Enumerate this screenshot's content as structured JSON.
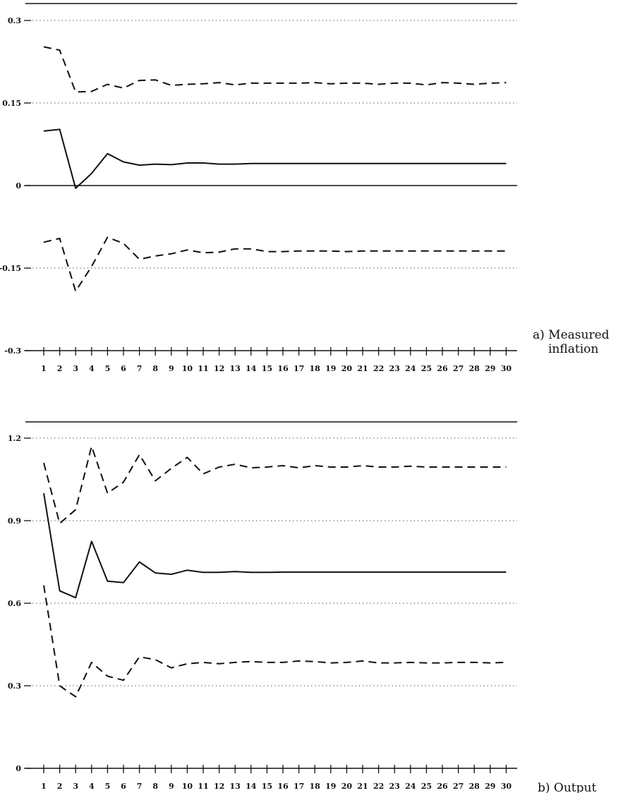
{
  "chart_data": [
    {
      "type": "line",
      "title": "",
      "caption_lines": [
        "a) Measured",
        "inflation"
      ],
      "xlabel": "",
      "ylabel": "",
      "x": [
        1,
        2,
        3,
        4,
        5,
        6,
        7,
        8,
        9,
        10,
        11,
        12,
        13,
        14,
        15,
        16,
        17,
        18,
        19,
        20,
        21,
        22,
        23,
        24,
        25,
        26,
        27,
        28,
        29,
        30
      ],
      "ylim": [
        -0.3,
        0.3
      ],
      "yticks": [
        0.3,
        0.15,
        0,
        -0.15,
        -0.3
      ],
      "ytick_labels": [
        "0.3",
        "0.15",
        "0",
        "-0.15",
        "-0.3"
      ],
      "grid": "dotted at 0.3, 0.15, -0.15; solid at 0",
      "legend": "none",
      "series": [
        {
          "style": "dashed",
          "values": [
            0.252,
            0.246,
            0.17,
            0.171,
            0.184,
            0.177,
            0.191,
            0.192,
            0.182,
            0.184,
            0.185,
            0.187,
            0.183,
            0.186,
            0.186,
            0.186,
            0.186,
            0.187,
            0.185,
            0.186,
            0.186,
            0.184,
            0.186,
            0.186,
            0.183,
            0.187,
            0.186,
            0.184,
            0.186,
            0.187
          ]
        },
        {
          "style": "solid",
          "values": [
            0.099,
            0.102,
            -0.005,
            0.022,
            0.058,
            0.043,
            0.037,
            0.039,
            0.038,
            0.041,
            0.041,
            0.039,
            0.039,
            0.04,
            0.04,
            0.04,
            0.04,
            0.04,
            0.04,
            0.04,
            0.04,
            0.04,
            0.04,
            0.04,
            0.04,
            0.04,
            0.04,
            0.04,
            0.04,
            0.04
          ]
        },
        {
          "style": "dashed",
          "values": [
            -0.103,
            -0.096,
            -0.192,
            -0.147,
            -0.094,
            -0.105,
            -0.134,
            -0.128,
            -0.124,
            -0.117,
            -0.122,
            -0.121,
            -0.115,
            -0.115,
            -0.12,
            -0.12,
            -0.119,
            -0.119,
            -0.119,
            -0.12,
            -0.119,
            -0.119,
            -0.119,
            -0.119,
            -0.119,
            -0.119,
            -0.119,
            -0.119,
            -0.119,
            -0.119
          ]
        }
      ]
    },
    {
      "type": "line",
      "title": "",
      "caption_lines": [
        "b) Output"
      ],
      "xlabel": "",
      "ylabel": "",
      "x": [
        1,
        2,
        3,
        4,
        5,
        6,
        7,
        8,
        9,
        10,
        11,
        12,
        13,
        14,
        15,
        16,
        17,
        18,
        19,
        20,
        21,
        22,
        23,
        24,
        25,
        26,
        27,
        28,
        29,
        30
      ],
      "ylim": [
        0,
        1.2
      ],
      "yticks": [
        1.2,
        0.9,
        0.6,
        0.3,
        0
      ],
      "ytick_labels": [
        "1.2",
        "0.9",
        "0.6",
        "0.3",
        "0"
      ],
      "grid": "dotted at 1.2, 0.9, 0.6, 0.3",
      "legend": "none",
      "series": [
        {
          "style": "dashed",
          "values": [
            1.11,
            0.89,
            0.94,
            1.17,
            1.0,
            1.04,
            1.14,
            1.045,
            1.09,
            1.13,
            1.07,
            1.095,
            1.105,
            1.092,
            1.095,
            1.1,
            1.092,
            1.1,
            1.095,
            1.095,
            1.1,
            1.095,
            1.095,
            1.098,
            1.095,
            1.095,
            1.095,
            1.095,
            1.095,
            1.095
          ]
        },
        {
          "style": "solid",
          "values": [
            1.0,
            0.645,
            0.62,
            0.825,
            0.68,
            0.675,
            0.75,
            0.71,
            0.705,
            0.72,
            0.712,
            0.712,
            0.715,
            0.712,
            0.712,
            0.713,
            0.713,
            0.713,
            0.713,
            0.713,
            0.713,
            0.713,
            0.713,
            0.713,
            0.713,
            0.713,
            0.713,
            0.713,
            0.713,
            0.713
          ]
        },
        {
          "style": "dashed",
          "values": [
            0.665,
            0.3,
            0.26,
            0.385,
            0.335,
            0.32,
            0.405,
            0.395,
            0.365,
            0.38,
            0.385,
            0.38,
            0.385,
            0.388,
            0.385,
            0.385,
            0.39,
            0.388,
            0.383,
            0.385,
            0.39,
            0.383,
            0.383,
            0.385,
            0.383,
            0.383,
            0.385,
            0.385,
            0.383,
            0.385
          ]
        }
      ]
    }
  ]
}
